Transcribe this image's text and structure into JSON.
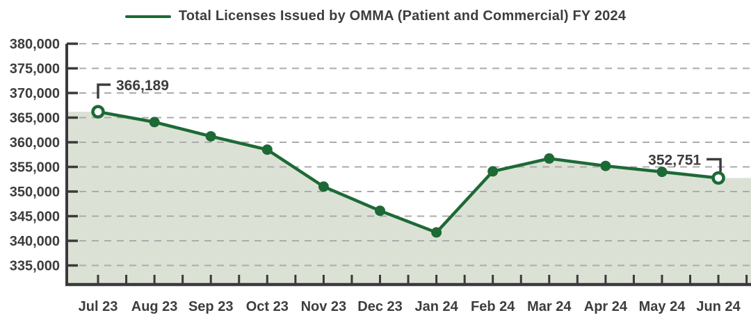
{
  "chart_data": {
    "type": "area",
    "title": "Total Licenses Issued by OMMA (Patient and Commercial) FY 2024",
    "categories": [
      "Jul 23",
      "Aug 23",
      "Sep 23",
      "Oct 23",
      "Nov 23",
      "Dec 23",
      "Jan 24",
      "Feb 24",
      "Mar 24",
      "Apr 24",
      "May 24",
      "Jun 24"
    ],
    "series": [
      {
        "name": "Total Licenses Issued by OMMA (Patient and Commercial) FY 2024",
        "values": [
          366189,
          364100,
          361200,
          358500,
          351000,
          346100,
          341700,
          354100,
          356700,
          355200,
          354000,
          352751
        ]
      }
    ],
    "y_ticks": {
      "values": [
        380000,
        375000,
        370000,
        365000,
        360000,
        355000,
        350000,
        345000,
        340000,
        335000
      ],
      "labels": [
        "380,000",
        "375,000",
        "370,000",
        "365,000",
        "360,000",
        "355,000",
        "350,000",
        "345,000",
        "340,000",
        "335,000"
      ]
    },
    "ylim": [
      331000,
      380000
    ],
    "xlabel": "",
    "ylabel": "",
    "grid": "horizontal-dashed",
    "legend_position": "top-center",
    "annotations": [
      {
        "category": "Jul 23",
        "value": 366189,
        "label": "366,189",
        "marker": "open-circle"
      },
      {
        "category": "Jun 24",
        "value": 352751,
        "label": "352,751",
        "marker": "open-circle"
      }
    ],
    "colors": {
      "line": "#1d6a36",
      "area_fill": "#dbe2d5",
      "axis": "#3a3a3a",
      "grid": "#ababab",
      "text": "#3d3d3d",
      "marker_fill": "#1d6a36",
      "open_marker_fill": "#ffffff"
    }
  }
}
